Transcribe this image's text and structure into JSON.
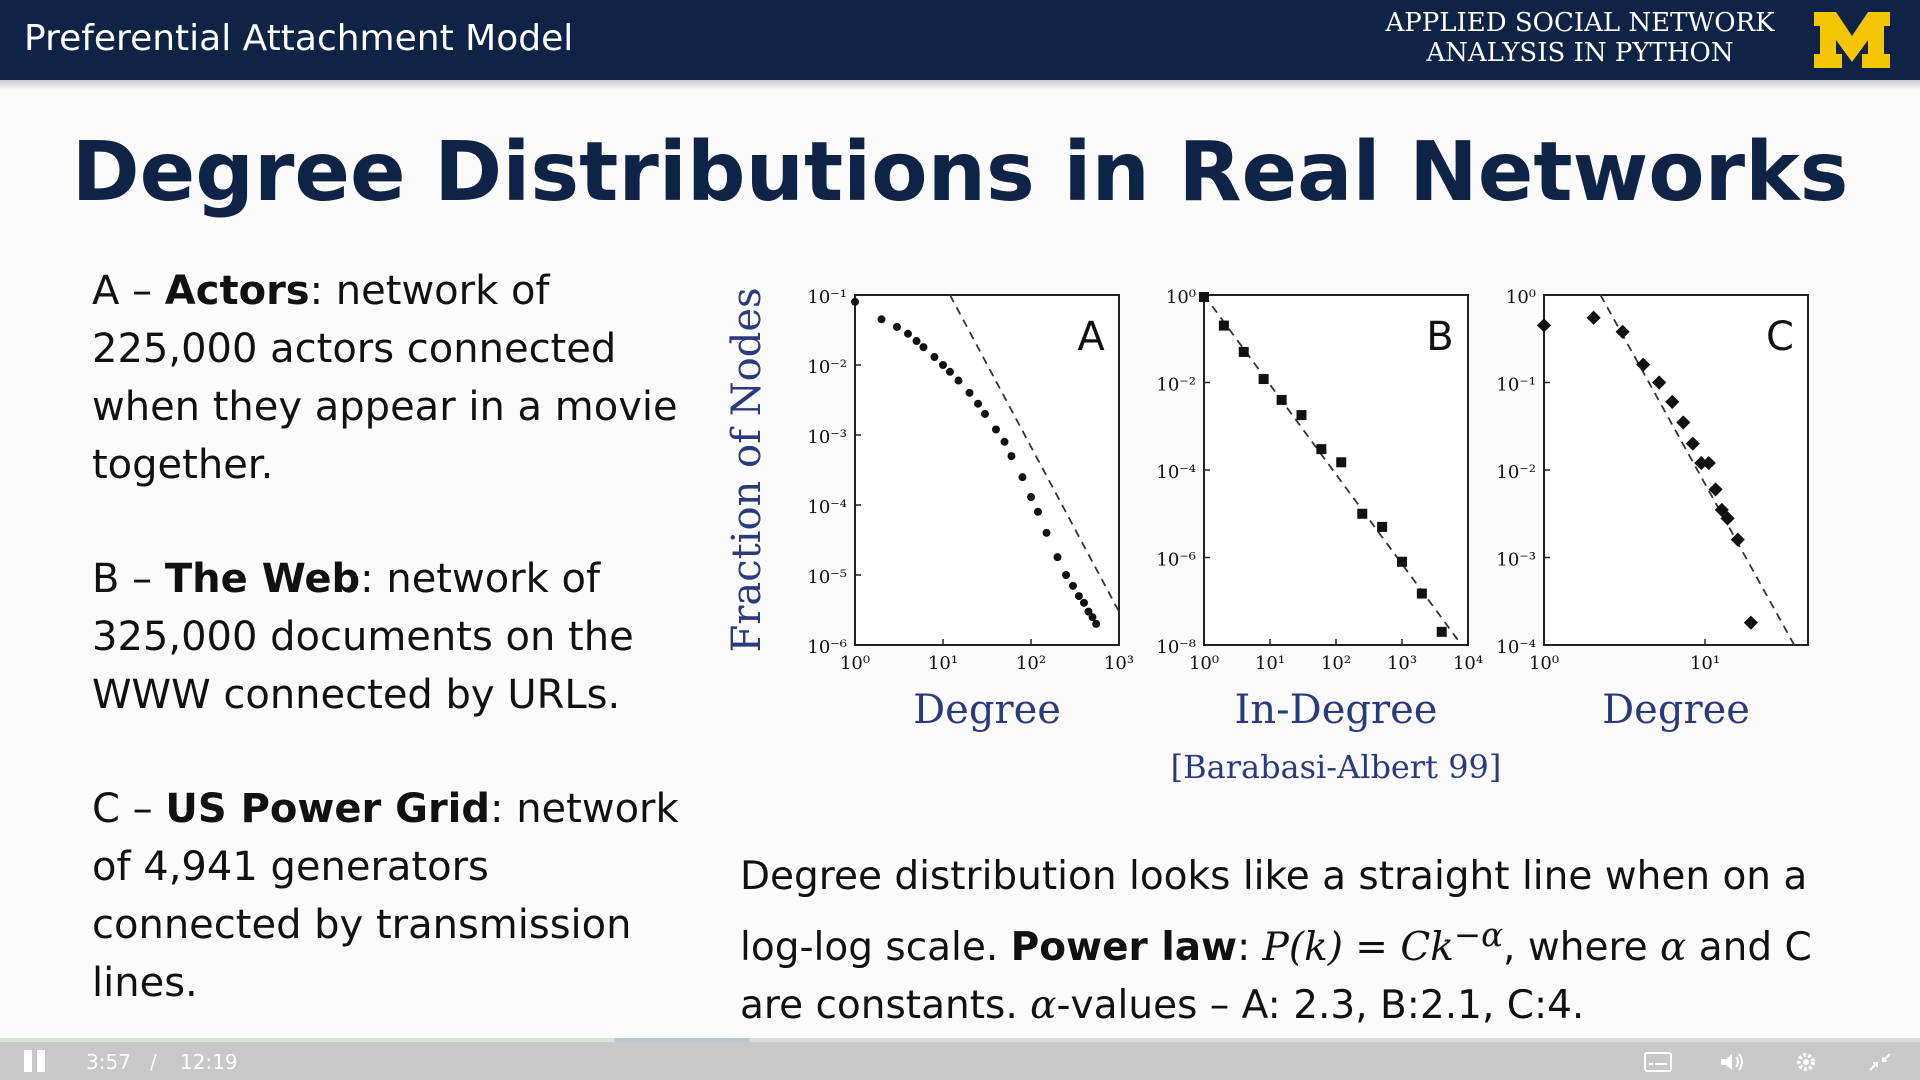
{
  "header": {
    "title": "Preferential Attachment Model",
    "course_line1": "APPLIED SOCIAL NETWORK",
    "course_line2": "ANALYSIS IN PYTHON"
  },
  "slide": {
    "heading": "Degree Distributions in Real Networks",
    "items": [
      {
        "prefix": "A – ",
        "name": "Actors",
        "desc": ": network of 225,000 actors connected when they appear in a movie together."
      },
      {
        "prefix": "B – ",
        "name": "The Web",
        "desc": ": network of 325,000 documents on the WWW connected by URLs."
      },
      {
        "prefix": "C – ",
        "name": "US Power Grid",
        "desc": ": network of 4,941 generators connected by transmission lines."
      }
    ],
    "bottom": {
      "part1": "Degree distribution looks like a straight line when on a log-log scale. ",
      "bold": "Power law",
      "part2": ": ",
      "formula": "P(k) = Ck",
      "exponent": "−α",
      "part3": ", where ",
      "alpha": "α",
      "part4": " and C are constants. ",
      "alpha2": "α",
      "part5": "-values – A: 2.3, B:2.1, C:4."
    }
  },
  "chart_data": [
    {
      "type": "scatter",
      "panel_label": "A",
      "xlabel": "Degree",
      "ylabel": "Fraction of Nodes",
      "xscale": "log",
      "yscale": "log",
      "xlim": [
        1,
        1000
      ],
      "ylim": [
        1e-06,
        0.1
      ],
      "x_ticks": [
        "10⁰",
        "10¹",
        "10²",
        "10³"
      ],
      "y_ticks": [
        "10⁻¹",
        "10⁻²",
        "10⁻³",
        "10⁻⁴",
        "10⁻⁵",
        "10⁻⁶"
      ],
      "x": [
        1,
        2,
        3,
        4,
        5,
        6,
        8,
        10,
        12,
        15,
        20,
        25,
        30,
        40,
        50,
        60,
        80,
        100,
        120,
        150,
        200,
        250,
        300,
        350,
        400,
        450,
        500,
        550
      ],
      "y": [
        0.08,
        0.045,
        0.035,
        0.028,
        0.022,
        0.018,
        0.013,
        0.01,
        0.008,
        0.006,
        0.004,
        0.0028,
        0.002,
        0.0012,
        0.0008,
        0.0005,
        0.00025,
        0.00013,
        8e-05,
        4e-05,
        1.8e-05,
        1e-05,
        7e-06,
        5e-06,
        4e-06,
        3e-06,
        2.5e-06,
        2e-06
      ],
      "fit_line": {
        "x": [
          12,
          1000
        ],
        "y": [
          0.1,
          3e-06
        ]
      }
    },
    {
      "type": "scatter",
      "panel_label": "B",
      "xlabel": "In-Degree",
      "xscale": "log",
      "yscale": "log",
      "xlim": [
        1,
        10000
      ],
      "ylim": [
        1e-08,
        1
      ],
      "x_ticks": [
        "10⁰",
        "10¹",
        "10²",
        "10³",
        "10⁴"
      ],
      "y_ticks": [
        "10⁰",
        "10⁻²",
        "10⁻⁴",
        "10⁻⁶",
        "10⁻⁸"
      ],
      "x": [
        1,
        2,
        4,
        8,
        15,
        30,
        60,
        120,
        250,
        500,
        1000,
        2000,
        4000
      ],
      "y": [
        0.9,
        0.2,
        0.05,
        0.012,
        0.004,
        0.0018,
        0.0003,
        0.00015,
        1e-05,
        5e-06,
        8e-07,
        1.5e-07,
        2e-08
      ],
      "fit_line": {
        "x": [
          1,
          8000
        ],
        "y": [
          1,
          1e-08
        ]
      },
      "caption": "[Barabasi-Albert 99]"
    },
    {
      "type": "scatter",
      "panel_label": "C",
      "xlabel": "Degree",
      "xscale": "log",
      "yscale": "log",
      "xlim": [
        1,
        40
      ],
      "ylim": [
        0.0001,
        1
      ],
      "x_ticks": [
        "10⁰",
        "10¹"
      ],
      "y_ticks": [
        "10⁰",
        "10⁻¹",
        "10⁻²",
        "10⁻³",
        "10⁻⁴"
      ],
      "x": [
        1,
        2,
        3,
        4,
        5,
        6,
        7,
        8,
        9,
        10,
        11,
        12,
        13,
        15,
        18
      ],
      "y": [
        0.45,
        0.55,
        0.38,
        0.16,
        0.1,
        0.06,
        0.035,
        0.02,
        0.012,
        0.012,
        0.006,
        0.0035,
        0.0028,
        0.0016,
        0.00018
      ],
      "fit_line": {
        "x": [
          2.2,
          33
        ],
        "y": [
          1,
          0.0001
        ]
      }
    }
  ],
  "player": {
    "current_time": "3:57",
    "separator": "/",
    "total_time": "12:19",
    "progress": 0.32,
    "buffered": 0.39
  }
}
